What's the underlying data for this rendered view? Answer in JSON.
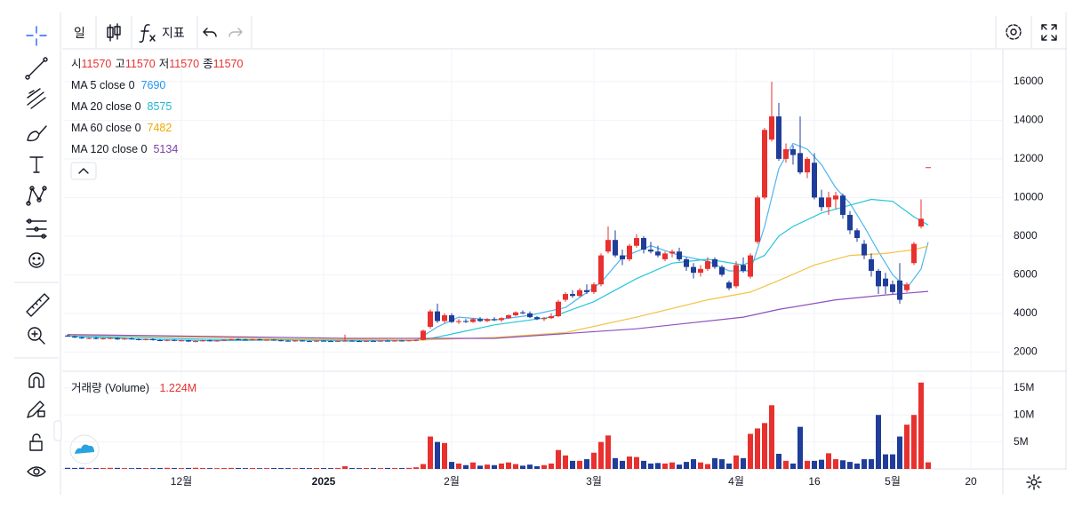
{
  "toolbar": {
    "interval": "일",
    "indicators": "지표"
  },
  "chart_data": {
    "type": "candlestick",
    "header_labels": [
      "시",
      "고",
      "저",
      "종"
    ],
    "candles": {
      "up_color": "#e8312f",
      "down_color": "#1f3d99",
      "open": [
        2850,
        2800,
        2750,
        2700,
        2720,
        2680,
        2700,
        2720,
        2650,
        2700,
        2660,
        2620,
        2660,
        2610,
        2590,
        2620,
        2580,
        2600,
        2540,
        2560,
        2600,
        2560,
        2590,
        2630,
        2660,
        2640,
        2620,
        2650,
        2610,
        2630,
        2600,
        2580,
        2560,
        2590,
        2560,
        2550,
        2580,
        2560,
        2550,
        2570,
        2580,
        2560,
        2550,
        2570,
        2560,
        2580,
        2560,
        2590,
        2570,
        2600,
        2620,
        3300,
        4100,
        3600,
        3900,
        3550,
        3600,
        3550,
        3700,
        3600,
        3700,
        3650,
        3750,
        3900,
        4050,
        4000,
        3800,
        3700,
        3750,
        3850,
        4700,
        5000,
        4900,
        5200,
        5100,
        5500,
        7200,
        7800,
        7000,
        6800,
        7500,
        7900,
        7300,
        7200,
        6800,
        7100,
        7200,
        6800,
        6400,
        6100,
        6300,
        6800,
        6400,
        5600,
        5400,
        6500,
        5900,
        7700,
        10000,
        13000,
        14200,
        12000,
        12500,
        12300,
        11300,
        11800,
        10000,
        9500,
        9900,
        10100,
        9100,
        8300,
        7600,
        6800,
        6200,
        5800,
        5500,
        5700,
        5200,
        6600,
        8500,
        11570
      ],
      "high": [
        2900,
        2850,
        2800,
        2760,
        2780,
        2740,
        2760,
        2760,
        2720,
        2740,
        2700,
        2690,
        2700,
        2660,
        2650,
        2660,
        2640,
        2630,
        2600,
        2620,
        2640,
        2610,
        2650,
        2680,
        2700,
        2680,
        2680,
        2690,
        2660,
        2670,
        2640,
        2620,
        2610,
        2620,
        2600,
        2600,
        2620,
        2600,
        2590,
        2900,
        2610,
        2600,
        2590,
        2610,
        2600,
        2620,
        2600,
        2630,
        2610,
        2650,
        3150,
        4200,
        4500,
        4000,
        4000,
        3700,
        3700,
        3750,
        3800,
        3750,
        3800,
        3800,
        3950,
        4100,
        4150,
        4100,
        3850,
        3800,
        4000,
        4700,
        5100,
        5200,
        5300,
        5500,
        5600,
        7100,
        8500,
        8300,
        7300,
        7600,
        8100,
        8000,
        7700,
        7500,
        7200,
        7300,
        7400,
        6900,
        6600,
        6500,
        6900,
        6900,
        6500,
        5700,
        6700,
        6900,
        7100,
        10100,
        13600,
        16000,
        14900,
        12800,
        12700,
        14200,
        12100,
        12300,
        10400,
        10300,
        10300,
        10200,
        9300,
        8400,
        7800,
        7100,
        6300,
        6100,
        5700,
        6600,
        5600,
        7700,
        9900,
        11570
      ],
      "low": [
        2780,
        2720,
        2680,
        2660,
        2650,
        2640,
        2660,
        2620,
        2620,
        2640,
        2600,
        2600,
        2590,
        2560,
        2560,
        2560,
        2540,
        2520,
        2500,
        2530,
        2540,
        2530,
        2570,
        2600,
        2620,
        2590,
        2600,
        2600,
        2580,
        2580,
        2560,
        2540,
        2530,
        2540,
        2520,
        2520,
        2540,
        2520,
        2520,
        2540,
        2540,
        2530,
        2520,
        2540,
        2530,
        2550,
        2530,
        2560,
        2540,
        2560,
        2600,
        3200,
        3500,
        3500,
        3500,
        3450,
        3500,
        3500,
        3550,
        3550,
        3600,
        3550,
        3700,
        3850,
        3950,
        3750,
        3650,
        3600,
        3700,
        3800,
        4600,
        4800,
        4850,
        5000,
        5000,
        5400,
        7100,
        6900,
        6500,
        6700,
        7400,
        7100,
        7100,
        6900,
        6700,
        6900,
        6700,
        6200,
        5800,
        5900,
        6200,
        6300,
        5900,
        5200,
        5300,
        6100,
        5800,
        7600,
        9900,
        12900,
        11900,
        11800,
        11700,
        11200,
        11000,
        9900,
        9300,
        9100,
        9400,
        8900,
        8100,
        7700,
        6800,
        5900,
        5000,
        5000,
        5000,
        4500,
        5100,
        6500,
        8400,
        11570
      ],
      "close": [
        2800,
        2750,
        2700,
        2720,
        2680,
        2700,
        2720,
        2650,
        2700,
        2660,
        2620,
        2660,
        2610,
        2590,
        2620,
        2580,
        2600,
        2540,
        2560,
        2600,
        2560,
        2590,
        2630,
        2660,
        2640,
        2620,
        2650,
        2610,
        2630,
        2600,
        2580,
        2560,
        2590,
        2560,
        2550,
        2580,
        2560,
        2550,
        2570,
        2580,
        2560,
        2550,
        2570,
        2560,
        2580,
        2560,
        2590,
        2570,
        2600,
        2620,
        3100,
        4100,
        3600,
        3900,
        3550,
        3600,
        3550,
        3700,
        3600,
        3700,
        3650,
        3750,
        3900,
        4050,
        4000,
        3800,
        3700,
        3750,
        3850,
        4600,
        5000,
        4900,
        5200,
        5100,
        5500,
        7000,
        7800,
        7000,
        6800,
        7500,
        7900,
        7300,
        7200,
        7000,
        7100,
        7200,
        6800,
        6400,
        6100,
        6300,
        6700,
        6400,
        6000,
        5300,
        6500,
        6200,
        7000,
        10000,
        13500,
        14200,
        12000,
        12500,
        12200,
        11300,
        12000,
        10000,
        9500,
        10000,
        10100,
        9100,
        8300,
        7900,
        7000,
        6200,
        5400,
        5400,
        5100,
        4700,
        5500,
        7600,
        8900,
        11570
      ]
    },
    "series": [
      {
        "name": "MA 5 close 0",
        "color": "#2196f3",
        "line_color": "#4db6f0",
        "x": [
          0,
          10,
          20,
          30,
          40,
          49,
          52,
          55,
          60,
          65,
          70,
          75,
          78,
          82,
          86,
          90,
          93,
          96,
          98,
          100,
          102,
          104,
          106,
          108,
          110,
          112,
          114,
          116,
          118,
          120,
          121
        ],
        "values": [
          2820,
          2650,
          2580,
          2620,
          2570,
          2590,
          3300,
          3800,
          3650,
          3900,
          4300,
          5600,
          6900,
          7500,
          7000,
          6700,
          6200,
          6200,
          8500,
          11500,
          12800,
          12500,
          11700,
          10500,
          9700,
          8500,
          7200,
          6000,
          5300,
          6300,
          7690
        ]
      },
      {
        "name": "MA 20 close 0",
        "color": "#1fb8cf",
        "line_color": "#26c6da",
        "x": [
          0,
          20,
          40,
          50,
          55,
          60,
          68,
          74,
          80,
          85,
          90,
          95,
          98,
          100,
          102,
          106,
          110,
          113,
          116,
          119,
          121
        ],
        "values": [
          2830,
          2650,
          2600,
          2620,
          3000,
          3400,
          3800,
          4600,
          5800,
          6600,
          6800,
          6500,
          7000,
          8000,
          8500,
          9200,
          9600,
          9900,
          9800,
          9000,
          8575
        ]
      },
      {
        "name": "MA 60 close 0",
        "color": "#f2a900",
        "line_color": "#f5c242",
        "x": [
          0,
          30,
          50,
          60,
          70,
          80,
          90,
          96,
          100,
          105,
          110,
          115,
          119,
          121
        ],
        "values": [
          2880,
          2680,
          2620,
          2750,
          3000,
          3800,
          4700,
          5100,
          5700,
          6500,
          7000,
          7100,
          7300,
          7482
        ]
      },
      {
        "name": "MA 120 close 0",
        "color": "#7b3fa8",
        "line_color": "#8e4fc0",
        "x": [
          0,
          40,
          60,
          80,
          95,
          100,
          108,
          115,
          121
        ],
        "values": [
          2900,
          2700,
          2700,
          3200,
          3800,
          4200,
          4700,
          4950,
          5134
        ]
      }
    ],
    "xlim": [
      -0.5,
      131.5
    ],
    "xticks": [
      {
        "value": 16,
        "label": "12월"
      },
      {
        "value": 36,
        "label": "2025",
        "bold": true
      },
      {
        "value": 54,
        "label": "2월"
      },
      {
        "value": 74,
        "label": "3월"
      },
      {
        "value": 94,
        "label": "4월"
      },
      {
        "value": 105,
        "label": "16"
      },
      {
        "value": 116,
        "label": "5월"
      },
      {
        "value": 127,
        "label": "20"
      }
    ],
    "ylim": [
      1000,
      17700
    ],
    "yticks": [
      2000,
      4000,
      6000,
      8000,
      10000,
      12000,
      14000,
      16000
    ],
    "grid": true,
    "volume": {
      "title": "거래량 (Volume)",
      "value_label": "1.224M",
      "values": [
        200000,
        180000,
        220000,
        150000,
        170000,
        160000,
        200000,
        190000,
        150000,
        140000,
        180000,
        160000,
        150000,
        170000,
        200000,
        160000,
        150000,
        180000,
        210000,
        170000,
        150000,
        140000,
        160000,
        190000,
        170000,
        150000,
        160000,
        140000,
        150000,
        170000,
        160000,
        150000,
        140000,
        160000,
        150000,
        170000,
        160000,
        150000,
        180000,
        500000,
        160000,
        150000,
        170000,
        160000,
        150000,
        180000,
        170000,
        160000,
        190000,
        300000,
        900000,
        6000000,
        5000000,
        4800000,
        1300000,
        1000000,
        700000,
        1200000,
        600000,
        800000,
        700000,
        1000000,
        1200000,
        900000,
        600000,
        800000,
        500000,
        700000,
        1000000,
        3500000,
        2500000,
        1500000,
        1500000,
        1800000,
        3000000,
        5000000,
        6200000,
        2000000,
        1500000,
        2300000,
        2200000,
        1500000,
        1000000,
        1100000,
        1000000,
        1200000,
        800000,
        1300000,
        1800000,
        1200000,
        900000,
        2000000,
        1800000,
        1000000,
        2500000,
        2000000,
        6500000,
        7500000,
        8500000,
        11800000,
        2800000,
        1500000,
        1000000,
        7800000,
        1500000,
        1500000,
        1700000,
        2900000,
        1800000,
        1600000,
        1300000,
        1000000,
        1800000,
        1800000,
        10000000,
        2700000,
        2700000,
        6000000,
        8200000,
        10000000,
        16000000,
        1224000
      ],
      "ylim": [
        0,
        18100000
      ],
      "yticks": [
        {
          "value": 5000000,
          "label": "5M"
        },
        {
          "value": 10000000,
          "label": "10M"
        },
        {
          "value": 15000000,
          "label": "15M"
        }
      ]
    }
  }
}
